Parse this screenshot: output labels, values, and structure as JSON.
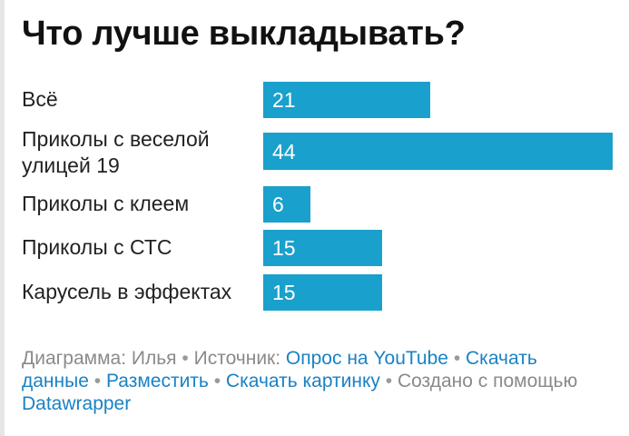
{
  "chart_data": {
    "type": "bar",
    "orientation": "horizontal",
    "title": "Что лучше выкладывать?",
    "categories": [
      "Всё",
      "Приколы с веселой улицей 19",
      "Приколы с клеем",
      "Приколы с СТС",
      "Карусель в эффектах"
    ],
    "values": [
      21,
      44,
      6,
      15,
      15
    ],
    "xlim": [
      0,
      44
    ],
    "grid": false,
    "legend": "none",
    "bar_color": "#1aa0cc",
    "value_labels": "inside-start"
  },
  "footer": {
    "chart_by_label": "Диаграмма: Илья",
    "source_label": "Источник:",
    "source_link": "Опрос на YouTube",
    "download_data": "Скачать данные",
    "embed": "Разместить",
    "download_image": "Скачать картинку",
    "created_with": "Создано с помощью",
    "tool_link": "Datawrapper",
    "separator": "•"
  }
}
